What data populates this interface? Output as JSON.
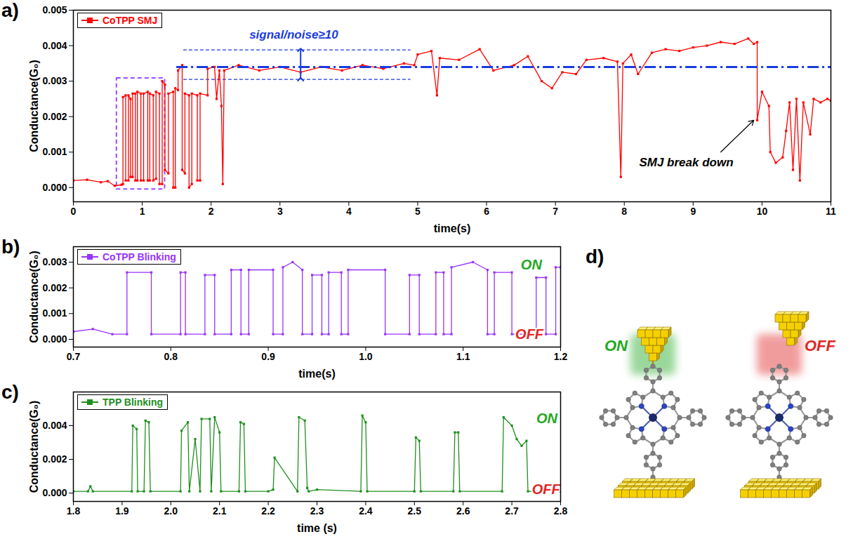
{
  "chart_data": [
    {
      "type": "line",
      "panel_label": "a)",
      "x_label": "time(s)",
      "y_label": "Conductance(G₀)",
      "xlim": [
        0,
        11
      ],
      "ylim": [
        -0.0004,
        0.005
      ],
      "xticks": [
        0,
        1,
        2,
        3,
        4,
        5,
        6,
        7,
        8,
        9,
        10,
        11
      ],
      "yticks": [
        {
          "value": 0,
          "label": "0.000"
        },
        {
          "value": 0.001,
          "label": "0.001"
        },
        {
          "value": 0.002,
          "label": "0.002"
        },
        {
          "value": 0.003,
          "label": "0.003"
        },
        {
          "value": 0.004,
          "label": "0.004"
        },
        {
          "value": 0.005,
          "label": "0.005"
        }
      ],
      "grid": false,
      "legend": "top-left",
      "x": [
        0,
        0.2,
        0.4,
        0.5,
        0.6,
        0.7,
        0.72,
        0.72,
        0.76,
        0.76,
        0.8,
        0.8,
        0.83,
        0.83,
        0.86,
        0.86,
        0.9,
        0.9,
        0.93,
        0.93,
        0.98,
        0.98,
        1.02,
        1.02,
        1.08,
        1.08,
        1.11,
        1.11,
        1.16,
        1.16,
        1.2,
        1.2,
        1.25,
        1.25,
        1.29,
        1.29,
        1.33,
        1.33,
        1.38,
        1.38,
        1.45,
        1.45,
        1.48,
        1.48,
        1.52,
        1.52,
        1.58,
        1.58,
        1.62,
        1.62,
        1.68,
        1.68,
        1.72,
        1.72,
        1.8,
        1.8,
        1.84,
        1.84,
        1.95,
        1.95,
        2.05,
        2.08,
        2.12,
        2.15,
        2.17,
        2.19,
        2.4,
        2.7,
        3.0,
        3.3,
        3.6,
        3.9,
        4.2,
        4.5,
        4.8,
        4.95,
        5.0,
        5.2,
        5.28,
        5.32,
        5.6,
        5.9,
        6.1,
        6.4,
        6.6,
        6.8,
        6.95,
        7.1,
        7.3,
        7.45,
        7.7,
        7.9,
        7.95,
        7.98,
        8.1,
        8.2,
        8.4,
        8.6,
        8.8,
        9.0,
        9.2,
        9.4,
        9.6,
        9.8,
        9.88,
        9.93,
        9.93,
        10.0,
        10.1,
        10.12,
        10.2,
        10.3,
        10.35,
        10.4,
        10.45,
        10.5,
        10.55,
        10.6,
        10.7,
        10.75,
        10.85,
        10.95,
        11.0
      ],
      "series": [
        {
          "name": "CoTPP SMJ",
          "color": "#ff0000",
          "marker": "square",
          "line_style": "solid",
          "values": [
            0.0002,
            0.00022,
            0.00015,
            0.00018,
            5e-05,
            8e-05,
            0.0001,
            0.00255,
            0.0026,
            0.0002,
            0.0002,
            0.0026,
            0.0025,
            0.0003,
            0.0003,
            0.00265,
            0.00265,
            0.0002,
            0.0002,
            0.0027,
            0.00265,
            0.0002,
            0.0002,
            0.00265,
            0.0027,
            0.0002,
            0.0002,
            0.00265,
            0.0026,
            0.0002,
            0.00025,
            0.0027,
            0.00265,
            0.0001,
            0.0001,
            0.003,
            0.0029,
            0.0005,
            0.0004,
            0.00265,
            0.0027,
            0,
            0,
            0.0028,
            0.00275,
            0.0033,
            0.00345,
            0.0005,
            0.0004,
            0.00265,
            0.0026,
            0,
            0.0001,
            0.00265,
            0.0026,
            0.0002,
            0.0002,
            0.00265,
            0.0026,
            0.00335,
            0.0034,
            0.0025,
            0.0033,
            0.0023,
            0.0001,
            0.0033,
            0.00345,
            0.0033,
            0.0034,
            0.00325,
            0.0034,
            0.0033,
            0.00345,
            0.00335,
            0.0035,
            0.00345,
            0.00375,
            0.00385,
            0.0026,
            0.00365,
            0.0036,
            0.0039,
            0.0033,
            0.00345,
            0.0037,
            0.003,
            0.0028,
            0.00325,
            0.0032,
            0.0036,
            0.00365,
            0.00355,
            0.0003,
            0.0035,
            0.00375,
            0.0032,
            0.0038,
            0.0039,
            0.00385,
            0.00395,
            0.004,
            0.0041,
            0.00405,
            0.0042,
            0.00405,
            0.0041,
            0.0019,
            0.0027,
            0.0023,
            0.001,
            0.0007,
            0.00085,
            0.0016,
            0.0024,
            0.0005,
            0.0025,
            0.0002,
            0.0024,
            0.0015,
            0.0025,
            0.0024,
            0.0025,
            0.00245
          ]
        }
      ],
      "reference_line": {
        "y": 0.0034,
        "x": [
          1.5,
          11
        ],
        "color": "#1a3be0",
        "line_style": "dashdot"
      },
      "noise_band": {
        "y": [
          0.00305,
          0.00388
        ],
        "x": [
          1.6,
          4.9
        ],
        "arrow_x": 3.3,
        "color": "#1a3be0"
      },
      "zoom_box": {
        "x": [
          0.63,
          1.33
        ],
        "y": [
          -5e-05,
          0.00308
        ],
        "color": "#9b4dff"
      },
      "annotations": [
        {
          "text": "signal/noise≥10",
          "x": 3.2,
          "y": 0.0043,
          "color": "#1a3be0"
        },
        {
          "text": "SMJ break down",
          "x": 8.9,
          "y": 0.0007,
          "color": "#000000",
          "arrow_from": [
            9.4,
            0.001
          ],
          "arrow_to": [
            9.88,
            0.0019
          ]
        }
      ]
    },
    {
      "type": "line",
      "panel_label": "b)",
      "x_label": "time(s)",
      "y_label": "Conductance(G₀)",
      "xlim": [
        0.7,
        1.2
      ],
      "ylim": [
        -0.0003,
        0.0036
      ],
      "xticks": [
        0.7,
        0.8,
        0.9,
        {
          "value": 1,
          "label": "1.0"
        },
        1.1,
        1.2
      ],
      "yticks": [
        {
          "value": 0,
          "label": "0.000"
        },
        {
          "value": 0.001,
          "label": "0.001"
        },
        {
          "value": 0.002,
          "label": "0.002"
        },
        {
          "value": 0.003,
          "label": "0.003"
        }
      ],
      "grid": false,
      "legend": "top-left",
      "x": [
        0.7,
        0.72,
        0.74,
        0.755,
        0.755,
        0.78,
        0.78,
        0.81,
        0.81,
        0.815,
        0.815,
        0.835,
        0.835,
        0.845,
        0.845,
        0.862,
        0.862,
        0.872,
        0.872,
        0.88,
        0.88,
        0.905,
        0.905,
        0.915,
        0.915,
        0.925,
        0.935,
        0.935,
        0.945,
        0.945,
        0.955,
        0.955,
        0.962,
        0.962,
        0.975,
        0.975,
        0.982,
        0.982,
        1.02,
        1.02,
        1.045,
        1.045,
        1.055,
        1.055,
        1.072,
        1.072,
        1.08,
        1.08,
        1.088,
        1.088,
        1.11,
        1.125,
        1.125,
        1.132,
        1.132,
        1.15,
        1.15,
        1.175,
        1.175,
        1.185,
        1.185,
        1.195,
        1.195,
        1.2
      ],
      "series": [
        {
          "name": "CoTPP Blinking",
          "color": "#9933ff",
          "marker": "square",
          "line_style": "solid",
          "values": [
            0.0003,
            0.0004,
            0.0002,
            0.0002,
            0.0026,
            0.0026,
            0.0002,
            0.0002,
            0.0026,
            0.0026,
            0.0002,
            0.0002,
            0.0025,
            0.0025,
            0.0002,
            0.0002,
            0.0027,
            0.0027,
            0.0002,
            0.0002,
            0.0027,
            0.0027,
            0.0002,
            0.0002,
            0.0028,
            0.003,
            0.0027,
            0.0002,
            0.0002,
            0.0025,
            0.0025,
            0.0002,
            0.0002,
            0.0026,
            0.0026,
            0.0002,
            0.0002,
            0.0027,
            0.0027,
            0.0002,
            0.0002,
            0.0025,
            0.0025,
            0.0002,
            0.0002,
            0.0026,
            0.0026,
            0.0002,
            0.0002,
            0.0028,
            0.003,
            0.0027,
            0.0002,
            0.0002,
            0.0026,
            0.0026,
            0.0002,
            0.0002,
            0.0024,
            0.0024,
            0.0002,
            0.0002,
            0.0028,
            0.0028
          ]
        }
      ],
      "annotations": [
        {
          "text": "ON",
          "x": 1.17,
          "y": 0.0029,
          "color": "#22a822"
        },
        {
          "text": "OFF",
          "x": 1.168,
          "y": 0.0002,
          "color": "#e02828"
        }
      ]
    },
    {
      "type": "line",
      "panel_label": "c)",
      "x_label": "time (s)",
      "y_label": "Conductance(G₀)",
      "xlim": [
        1.8,
        2.8
      ],
      "ylim": [
        -0.0005,
        0.006
      ],
      "xticks": [
        1.8,
        1.9,
        {
          "value": 2,
          "label": "2.0"
        },
        2.1,
        2.2,
        2.3,
        2.4,
        2.5,
        2.6,
        2.7,
        2.8
      ],
      "yticks": [
        {
          "value": 0,
          "label": "0.000"
        },
        {
          "value": 0.002,
          "label": "0.002"
        },
        {
          "value": 0.004,
          "label": "0.004"
        }
      ],
      "grid": false,
      "legend": "top-left",
      "x": [
        1.8,
        1.83,
        1.835,
        1.84,
        1.92,
        1.922,
        1.93,
        1.932,
        1.945,
        1.948,
        1.955,
        1.958,
        2.02,
        2.022,
        2.035,
        2.038,
        2.05,
        2.06,
        2.063,
        2.08,
        2.083,
        2.09,
        2.1,
        2.103,
        2.14,
        2.143,
        2.15,
        2.153,
        2.2,
        2.21,
        2.213,
        2.26,
        2.263,
        2.275,
        2.28,
        2.283,
        2.3,
        2.39,
        2.393,
        2.4,
        2.403,
        2.5,
        2.503,
        2.51,
        2.513,
        2.58,
        2.583,
        2.59,
        2.593,
        2.68,
        2.683,
        2.7,
        2.71,
        2.72,
        2.73,
        2.733,
        2.8
      ],
      "series": [
        {
          "name": "TPP Blinking",
          "color": "#1f8f1f",
          "marker": "square",
          "line_style": "solid",
          "values": [
            0.0001,
            0.0001,
            0.0004,
            0.0001,
            0.0001,
            0.004,
            0.0038,
            0.0001,
            0.0001,
            0.0043,
            0.0042,
            0.0001,
            0.0001,
            0.0037,
            0.0042,
            0.0001,
            0.0032,
            0.0001,
            0.0044,
            0.0044,
            0.0001,
            0.0045,
            0.0036,
            0.0001,
            0.0001,
            0.0042,
            0.0041,
            0.0001,
            0.0001,
            0.0002,
            0.0021,
            0.0001,
            0.0045,
            0.0043,
            0.0003,
            0.0001,
            0.0002,
            0.0001,
            0.0046,
            0.0042,
            0.0001,
            0.0001,
            0.0033,
            0.0031,
            0.0001,
            0.0001,
            0.0036,
            0.0036,
            0.0001,
            0.0001,
            0.0045,
            0.004,
            0.0032,
            0.0028,
            0.0031,
            0.0001,
            0.0001
          ]
        }
      ],
      "annotations": [
        {
          "text": "ON",
          "x": 2.772,
          "y": 0.0044,
          "color": "#22a822"
        },
        {
          "text": "OFF",
          "x": 2.77,
          "y": 0.0002,
          "color": "#e02828"
        }
      ]
    }
  ],
  "diagram": {
    "panel_label": "d)",
    "states": [
      {
        "label": "ON",
        "color": "#22a822"
      },
      {
        "label": "OFF",
        "color": "#e02828"
      }
    ]
  }
}
